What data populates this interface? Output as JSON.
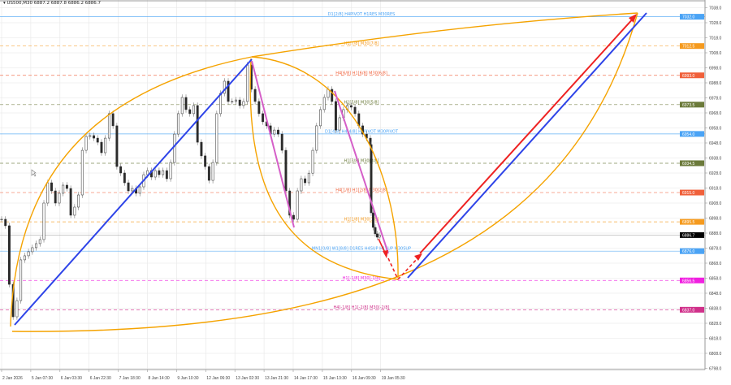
{
  "header": {
    "title": "US500,M30 6887.2 6887.8 6886.2 6886.7",
    "menu_icon": "triangle-down-icon"
  },
  "colors": {
    "background": "#ffffff",
    "grid": "#e6e6e6",
    "candle": "#2b2b2b",
    "blue": "#2e44e8",
    "red": "#ee2222",
    "magenta": "#d55fc8",
    "orange": "#f5a300",
    "axis": "#9a9a9a"
  },
  "chart_data": {
    "type": "candlestick",
    "symbol": "US500",
    "timeframe": "M30",
    "ylim": [
      6793,
      7043
    ],
    "y_ticks": [
      "7038.0",
      "7028.0",
      "7018.0",
      "7008.0",
      "6998.0",
      "6988.0",
      "6978.0",
      "6968.0",
      "6958.0",
      "6948.0",
      "6938.0",
      "6928.0",
      "6918.0",
      "6908.0",
      "6898.0",
      "6888.0",
      "6878.0",
      "6868.0",
      "6858.0",
      "6848.0",
      "6838.0",
      "6828.0",
      "6818.0",
      "6808.0",
      "6798.0"
    ],
    "x_ticks": [
      "2 Jan 2026",
      "5 Jan 07:30",
      "6 Jan 03:30",
      "6 Jan 22:30",
      "7 Jan 18:30",
      "8 Jan 14:30",
      "9 Jan 10:30",
      "12 Jan 06:30",
      "13 Jan 02:30",
      "13 Jan 21:30",
      "14 Jan 17:30",
      "15 Jan 13:30",
      "16 Jan 09:30",
      "19 Jan 05:30"
    ],
    "close": [
      6897.2,
      6892.9,
      6853.9,
      6832.3,
      6843.1,
      6870.2,
      6872.9,
      6875.6,
      6878.3,
      6881.0,
      6883.7,
      6908.0,
      6921.5,
      6916.1,
      6908.0,
      6914.5,
      6919.9,
      6917.7,
      6899.9,
      6905.3,
      6913.4,
      6943.1,
      6952.3,
      6952.9,
      6951.2,
      6948.5,
      6941.5,
      6951.2,
      6967.5,
      6959.4,
      6932.3,
      6928.0,
      6921.5,
      6916.1,
      6917.7,
      6914.5,
      6918.8,
      6926.9,
      6929.6,
      6925.3,
      6929.6,
      6926.9,
      6929.6,
      6924.2,
      6935.0,
      6953.9,
      6967.5,
      6978.3,
      6970.2,
      6967.5,
      6972.9,
      6948.5,
      6939.4,
      6932.3,
      6923.1,
      6935.0,
      6967.5,
      6981.0,
      6989.1,
      6975.6,
      6975.6,
      6976.6,
      6972.9,
      6975.6,
      6999.9,
      6983.7,
      6975.6,
      6967.5,
      6962.1,
      6959.4,
      6953.9,
      6956.6,
      6953.9,
      6943.1,
      6916.1,
      6899.9,
      6897.2,
      6916.1,
      6924.2,
      6921.5,
      6927.9,
      6943.1,
      6959.4,
      6970.2,
      6978.3,
      6983.7,
      6975.6,
      6956.6,
      6964.8,
      6970.2,
      6972.9,
      6971.8,
      6967.5,
      6959.4,
      6953.9,
      6951.2,
      6946.9,
      6901.5,
      6891.8,
      6887.5,
      6885.3,
      6886.7
    ],
    "current_price": {
      "label": "6886.7",
      "value": 6886.7
    },
    "levels": [
      {
        "price": 7032.0,
        "label": "D1[2/8] H4PIVOT H1RES M30RES",
        "tag": "7032.0",
        "color": "#4aa3f5",
        "dash": false
      },
      {
        "price": 7012.5,
        "label": "H1[7/8] M30[7/8]",
        "tag": "7012.5",
        "color": "#f59a1e",
        "dash": true
      },
      {
        "price": 6993.0,
        "label": "H4[6/8] H1[6/8] M30[6/8]",
        "tag": "6993.0",
        "color": "#f0603a",
        "dash": true
      },
      {
        "price": 6973.5,
        "label": "H1[5/8] M30[5/8]",
        "tag": "6973.5",
        "color": "#6b7a3a",
        "dash": true
      },
      {
        "price": 6954.0,
        "label": "D1[4/8] H4[4/8] H1PIVOT M30PIVOT",
        "tag": "6954.0",
        "color": "#4aa3f5",
        "dash": false
      },
      {
        "price": 6934.5,
        "label": "H1[3/8] M30[3/8]",
        "tag": "6934.5",
        "color": "#6b7a3a",
        "dash": true
      },
      {
        "price": 6915.0,
        "label": "H4[1/8] H1[2/8] M30[2/8]",
        "tag": "6915.0",
        "color": "#f0603a",
        "dash": true
      },
      {
        "price": 6895.5,
        "label": "H1[1/8] M30[1/8]",
        "tag": "6895.5",
        "color": "#f59a1e",
        "dash": true
      },
      {
        "price": 6876.0,
        "label": "MN1[0/8] W1[8/8] D1RES H4SUP H1SUP M30SUP",
        "tag": "6876.0",
        "color": "#4aa3f5",
        "dash": false
      },
      {
        "price": 6856.5,
        "label": "H1[-1/8] M30[-1/8]",
        "tag": "6856.5",
        "color": "#f020e0",
        "dash": true
      },
      {
        "price": 6837.0,
        "label": "H4[-1/8] H1[-2/8] M30[-2/8]",
        "tag": "6837.0",
        "color": "#d0308a",
        "dash": true
      }
    ]
  }
}
